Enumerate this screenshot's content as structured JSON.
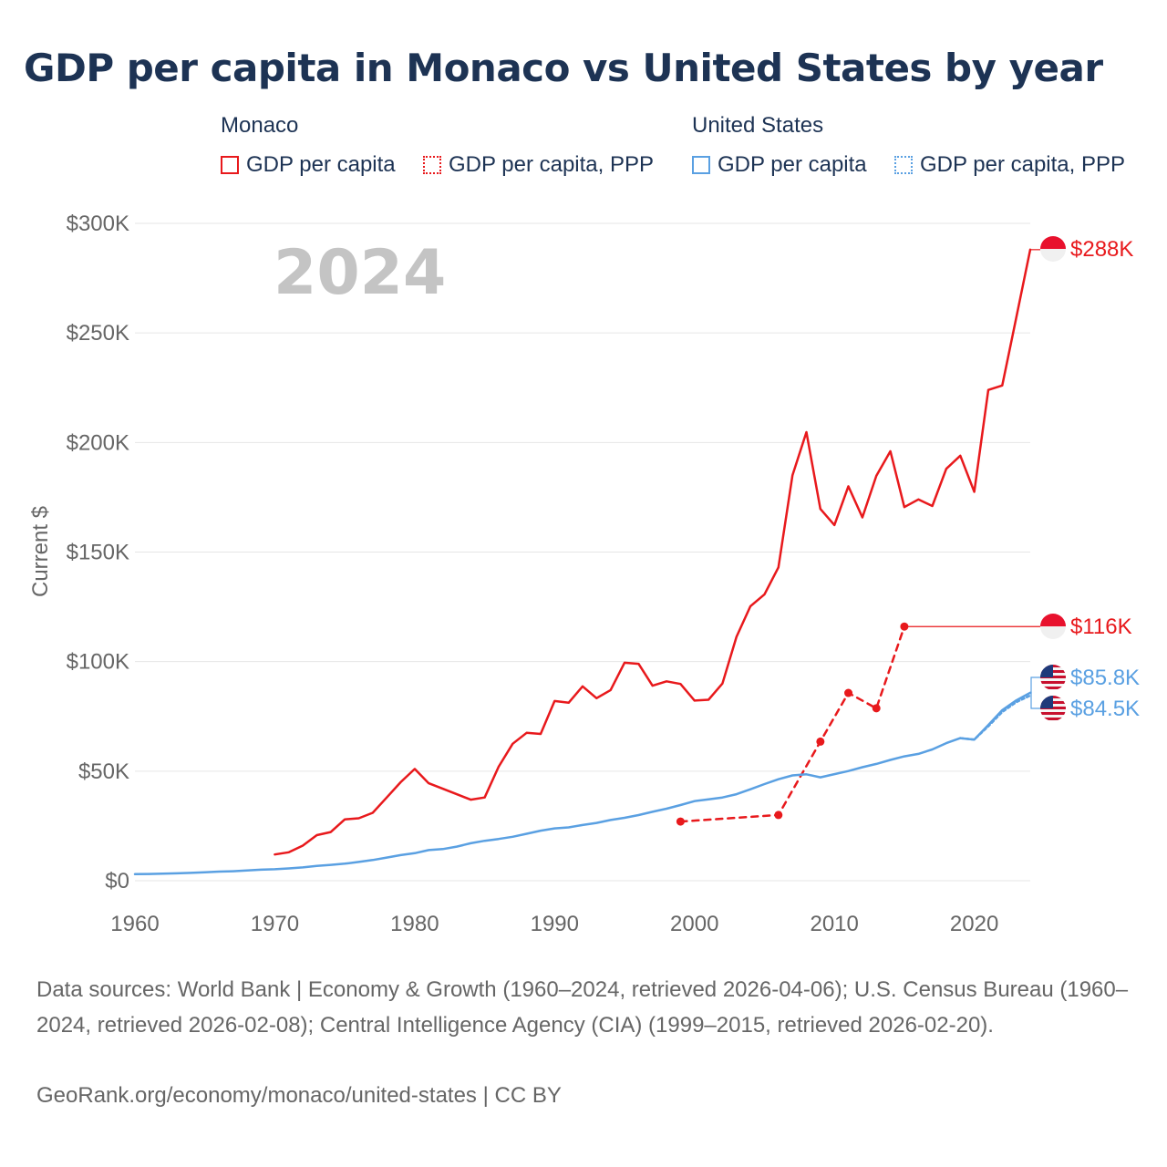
{
  "title": "GDP per capita in Monaco vs United States by year",
  "legend": {
    "groups": [
      {
        "name": "Monaco",
        "items": [
          {
            "label": "GDP per capita",
            "color": "#e8191c",
            "style": "solid"
          },
          {
            "label": "GDP per capita, PPP",
            "color": "#e8191c",
            "style": "dotted"
          }
        ]
      },
      {
        "name": "United States",
        "items": [
          {
            "label": "GDP per capita",
            "color": "#5aa0e2",
            "style": "solid"
          },
          {
            "label": "GDP per capita, PPP",
            "color": "#5aa0e2",
            "style": "dotted"
          }
        ]
      }
    ]
  },
  "footer": {
    "sources": "Data sources: World Bank | Economy & Growth (1960–2024, retrieved 2026-04-06); U.S. Census Bureau (1960–2024, retrieved 2026-02-08); Central Intelligence Agency (CIA) (1999–2015, retrieved 2026-02-20).",
    "credit": "GeoRank.org/economy/monaco/united-states | CC BY"
  },
  "colors": {
    "monaco": "#e8191c",
    "us": "#5aa0e2",
    "grid": "#e6e6e6",
    "axis_text": "#666666",
    "title": "#1d3354"
  },
  "chart_data": {
    "type": "line",
    "title": "GDP per capita in Monaco vs United States by year",
    "year_label": "2024",
    "xlabel": "",
    "ylabel": "Current $",
    "xlim": [
      1960,
      2024
    ],
    "ylim": [
      0,
      300000
    ],
    "x_ticks": [
      1960,
      1970,
      1980,
      1990,
      2000,
      2010,
      2020
    ],
    "x_tick_labels": [
      "1960",
      "1970",
      "1980",
      "1990",
      "2000",
      "2010",
      "2020"
    ],
    "y_ticks": [
      0,
      50000,
      100000,
      150000,
      200000,
      250000,
      300000
    ],
    "y_tick_labels": [
      "$0",
      "$50K",
      "$100K",
      "$150K",
      "$200K",
      "$250K",
      "$300K"
    ],
    "grid": true,
    "series": [
      {
        "name": "Monaco GDP per capita",
        "country": "monaco",
        "style": "solid",
        "end_label": "$288K",
        "x": [
          1970,
          1971,
          1972,
          1973,
          1974,
          1975,
          1976,
          1977,
          1978,
          1979,
          1980,
          1981,
          1982,
          1983,
          1984,
          1985,
          1986,
          1987,
          1988,
          1989,
          1990,
          1991,
          1992,
          1993,
          1994,
          1995,
          1996,
          1997,
          1998,
          1999,
          2000,
          2001,
          2002,
          2003,
          2004,
          2005,
          2006,
          2007,
          2008,
          2009,
          2010,
          2011,
          2012,
          2013,
          2014,
          2015,
          2016,
          2017,
          2018,
          2019,
          2020,
          2021,
          2022,
          2023,
          2024
        ],
        "y": [
          12000,
          13000,
          16000,
          20800,
          22200,
          28000,
          28500,
          31000,
          38000,
          45000,
          51000,
          44500,
          42000,
          39500,
          37000,
          38000,
          52000,
          62500,
          67500,
          67000,
          82000,
          81200,
          88700,
          83300,
          87000,
          99500,
          99000,
          89000,
          91000,
          89800,
          82200,
          82600,
          90000,
          111300,
          125300,
          130700,
          143000,
          185000,
          204700,
          169700,
          162300,
          180000,
          165800,
          184800,
          196000,
          170500,
          174000,
          171000,
          188000,
          194000,
          177500,
          224000,
          226000,
          257000,
          288000
        ]
      },
      {
        "name": "Monaco GDP per capita, PPP",
        "country": "monaco",
        "style": "dashed",
        "end_label": "$116K",
        "x": [
          1999,
          2006,
          2009,
          2011,
          2013,
          2015
        ],
        "y": [
          27000,
          30000,
          63500,
          85700,
          78700,
          116000
        ]
      },
      {
        "name": "United States GDP per capita",
        "country": "us",
        "style": "solid",
        "end_label": "$85.8K",
        "x": [
          1960,
          1961,
          1962,
          1963,
          1964,
          1965,
          1966,
          1967,
          1968,
          1969,
          1970,
          1971,
          1972,
          1973,
          1974,
          1975,
          1976,
          1977,
          1978,
          1979,
          1980,
          1981,
          1982,
          1983,
          1984,
          1985,
          1986,
          1987,
          1988,
          1989,
          1990,
          1991,
          1992,
          1993,
          1994,
          1995,
          1996,
          1997,
          1998,
          1999,
          2000,
          2001,
          2002,
          2003,
          2004,
          2005,
          2006,
          2007,
          2008,
          2009,
          2010,
          2011,
          2012,
          2013,
          2014,
          2015,
          2016,
          2017,
          2018,
          2019,
          2020,
          2021,
          2022,
          2023,
          2024
        ],
        "y": [
          3007,
          3067,
          3244,
          3375,
          3574,
          3828,
          4146,
          4336,
          4696,
          5032,
          5234,
          5609,
          6094,
          6726,
          7226,
          7801,
          8592,
          9453,
          10565,
          11674,
          12575,
          13976,
          14434,
          15544,
          17121,
          18237,
          19071,
          20039,
          21417,
          22857,
          23889,
          24342,
          25419,
          26387,
          27695,
          28691,
          29968,
          31459,
          32854,
          34516,
          36330,
          37134,
          37998,
          39490,
          41725,
          44123,
          46302,
          48050,
          48570,
          47195,
          48651,
          50066,
          51784,
          53291,
          55124,
          56763,
          57867,
          59915,
          62805,
          65095,
          64413,
          71056,
          77861,
          82305,
          85810
        ]
      },
      {
        "name": "United States GDP per capita, PPP",
        "country": "us",
        "style": "dotted",
        "end_label": "$84.5K",
        "x": [
          2019,
          2020,
          2021,
          2022,
          2023,
          2024
        ],
        "y": [
          65095,
          64413,
          70500,
          77000,
          81500,
          84500
        ]
      }
    ]
  }
}
